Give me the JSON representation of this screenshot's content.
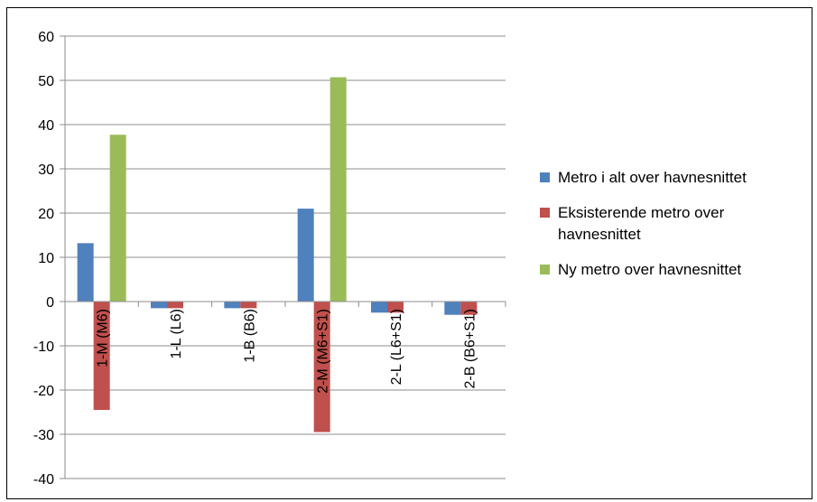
{
  "chart_data": {
    "type": "bar",
    "title": "",
    "xlabel": "",
    "ylabel": "",
    "ylim": [
      -40,
      60
    ],
    "yticks": [
      60,
      50,
      40,
      30,
      20,
      10,
      0,
      -10,
      -20,
      -30,
      -40
    ],
    "grid": true,
    "legend_position": "right",
    "categories": [
      "1-M (M6)",
      "1-L (L6)",
      "1-B (B6)",
      "2-M (M6+S1)",
      "2-L (L6+S1)",
      "2-B (B6+S1)"
    ],
    "series": [
      {
        "name": "Metro i alt over havnesnittet",
        "color": "#4F81BD",
        "values": [
          13.2,
          -1.5,
          -1.5,
          21,
          -2.5,
          -3
        ]
      },
      {
        "name": "Eksisterende metro over havnesnittet",
        "color": "#C0504D",
        "values": [
          -24.5,
          -1.5,
          -1.5,
          -29.5,
          -2.5,
          -3
        ]
      },
      {
        "name": "Ny metro over havnesnittet",
        "color": "#9BBB59",
        "values": [
          37.7,
          0,
          0,
          50.7,
          0,
          0
        ]
      }
    ]
  }
}
